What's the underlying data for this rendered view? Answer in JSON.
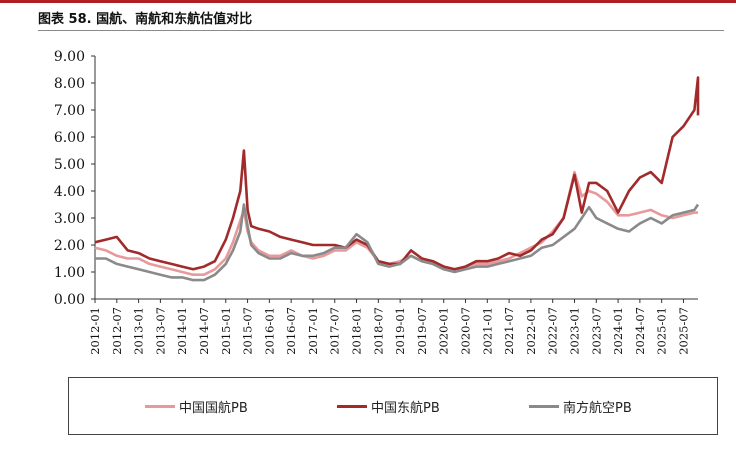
{
  "header": {
    "title": "图表 58. 国航、南航和东航估值对比"
  },
  "chart_data": {
    "type": "line",
    "title": "图表 58. 国航、南航和东航估值对比",
    "xlabel": "",
    "ylabel": "",
    "ylim": [
      0,
      9
    ],
    "y_ticks": [
      "0.00",
      "1.00",
      "2.00",
      "3.00",
      "4.00",
      "5.00",
      "6.00",
      "7.00",
      "8.00",
      "9.00"
    ],
    "x_ticks": [
      "2012-01",
      "2012-07",
      "2013-01",
      "2013-07",
      "2014-01",
      "2014-07",
      "2015-01",
      "2015-07",
      "2016-01",
      "2016-07",
      "2017-01",
      "2017-07",
      "2018-01",
      "2018-07",
      "2019-01",
      "2019-07",
      "2020-01",
      "2020-07",
      "2021-01",
      "2021-07",
      "2022-01",
      "2022-07",
      "2023-01",
      "2023-07",
      "2024-01",
      "2024-07",
      "2025-01",
      "2025-07"
    ],
    "x_range": [
      "2012-01",
      "2025-11"
    ],
    "grid": false,
    "legend_position": "bottom",
    "series": [
      {
        "name": "中国国航PB",
        "color": "#e8999b",
        "points": [
          [
            "2012-01",
            1.9
          ],
          [
            "2012-04",
            1.8
          ],
          [
            "2012-07",
            1.6
          ],
          [
            "2012-10",
            1.5
          ],
          [
            "2013-01",
            1.5
          ],
          [
            "2013-04",
            1.3
          ],
          [
            "2013-07",
            1.2
          ],
          [
            "2013-10",
            1.1
          ],
          [
            "2014-01",
            1.0
          ],
          [
            "2014-04",
            0.9
          ],
          [
            "2014-07",
            0.9
          ],
          [
            "2014-10",
            1.1
          ],
          [
            "2015-01",
            1.5
          ],
          [
            "2015-03",
            2.1
          ],
          [
            "2015-05",
            2.9
          ],
          [
            "2015-06",
            3.3
          ],
          [
            "2015-07",
            2.5
          ],
          [
            "2015-08",
            2.1
          ],
          [
            "2015-10",
            1.8
          ],
          [
            "2016-01",
            1.6
          ],
          [
            "2016-04",
            1.6
          ],
          [
            "2016-07",
            1.8
          ],
          [
            "2016-10",
            1.6
          ],
          [
            "2017-01",
            1.5
          ],
          [
            "2017-04",
            1.6
          ],
          [
            "2017-07",
            1.8
          ],
          [
            "2017-10",
            1.8
          ],
          [
            "2018-01",
            2.1
          ],
          [
            "2018-04",
            1.9
          ],
          [
            "2018-07",
            1.4
          ],
          [
            "2018-10",
            1.3
          ],
          [
            "2019-01",
            1.4
          ],
          [
            "2019-04",
            1.6
          ],
          [
            "2019-07",
            1.4
          ],
          [
            "2019-10",
            1.3
          ],
          [
            "2020-01",
            1.2
          ],
          [
            "2020-04",
            1.1
          ],
          [
            "2020-07",
            1.2
          ],
          [
            "2020-10",
            1.3
          ],
          [
            "2021-01",
            1.3
          ],
          [
            "2021-04",
            1.4
          ],
          [
            "2021-07",
            1.5
          ],
          [
            "2021-10",
            1.7
          ],
          [
            "2022-01",
            1.9
          ],
          [
            "2022-04",
            2.1
          ],
          [
            "2022-07",
            2.5
          ],
          [
            "2022-10",
            3.0
          ],
          [
            "2023-01",
            4.7
          ],
          [
            "2023-03",
            3.8
          ],
          [
            "2023-05",
            4.0
          ],
          [
            "2023-07",
            3.9
          ],
          [
            "2023-10",
            3.6
          ],
          [
            "2024-01",
            3.1
          ],
          [
            "2024-04",
            3.1
          ],
          [
            "2024-07",
            3.2
          ],
          [
            "2024-10",
            3.3
          ],
          [
            "2025-01",
            3.1
          ],
          [
            "2025-04",
            3.0
          ],
          [
            "2025-07",
            3.1
          ],
          [
            "2025-10",
            3.2
          ],
          [
            "2025-11",
            3.2
          ]
        ]
      },
      {
        "name": "中国东航PB",
        "color": "#a12a2b",
        "points": [
          [
            "2012-01",
            2.1
          ],
          [
            "2012-04",
            2.2
          ],
          [
            "2012-07",
            2.3
          ],
          [
            "2012-10",
            1.8
          ],
          [
            "2013-01",
            1.7
          ],
          [
            "2013-04",
            1.5
          ],
          [
            "2013-07",
            1.4
          ],
          [
            "2013-10",
            1.3
          ],
          [
            "2014-01",
            1.2
          ],
          [
            "2014-04",
            1.1
          ],
          [
            "2014-07",
            1.2
          ],
          [
            "2014-10",
            1.4
          ],
          [
            "2015-01",
            2.2
          ],
          [
            "2015-03",
            3.0
          ],
          [
            "2015-05",
            4.0
          ],
          [
            "2015-06",
            5.5
          ],
          [
            "2015-07",
            3.3
          ],
          [
            "2015-08",
            2.7
          ],
          [
            "2015-10",
            2.6
          ],
          [
            "2016-01",
            2.5
          ],
          [
            "2016-04",
            2.3
          ],
          [
            "2016-07",
            2.2
          ],
          [
            "2016-10",
            2.1
          ],
          [
            "2017-01",
            2.0
          ],
          [
            "2017-04",
            2.0
          ],
          [
            "2017-07",
            2.0
          ],
          [
            "2017-10",
            1.9
          ],
          [
            "2018-01",
            2.2
          ],
          [
            "2018-04",
            2.0
          ],
          [
            "2018-07",
            1.4
          ],
          [
            "2018-10",
            1.3
          ],
          [
            "2019-01",
            1.3
          ],
          [
            "2019-04",
            1.8
          ],
          [
            "2019-07",
            1.5
          ],
          [
            "2019-10",
            1.4
          ],
          [
            "2020-01",
            1.2
          ],
          [
            "2020-04",
            1.1
          ],
          [
            "2020-07",
            1.2
          ],
          [
            "2020-10",
            1.4
          ],
          [
            "2021-01",
            1.4
          ],
          [
            "2021-04",
            1.5
          ],
          [
            "2021-07",
            1.7
          ],
          [
            "2021-10",
            1.6
          ],
          [
            "2022-01",
            1.8
          ],
          [
            "2022-04",
            2.2
          ],
          [
            "2022-07",
            2.4
          ],
          [
            "2022-10",
            3.0
          ],
          [
            "2023-01",
            4.6
          ],
          [
            "2023-03",
            3.2
          ],
          [
            "2023-05",
            4.3
          ],
          [
            "2023-07",
            4.3
          ],
          [
            "2023-10",
            4.0
          ],
          [
            "2024-01",
            3.2
          ],
          [
            "2024-04",
            4.0
          ],
          [
            "2024-07",
            4.5
          ],
          [
            "2024-10",
            4.7
          ],
          [
            "2025-01",
            4.3
          ],
          [
            "2025-04",
            6.0
          ],
          [
            "2025-07",
            6.4
          ],
          [
            "2025-10",
            7.0
          ],
          [
            "2025-11",
            8.2
          ],
          [
            "2025-11",
            6.8
          ]
        ]
      },
      {
        "name": "南方航空PB",
        "color": "#8a8a8a",
        "points": [
          [
            "2012-01",
            1.5
          ],
          [
            "2012-04",
            1.5
          ],
          [
            "2012-07",
            1.3
          ],
          [
            "2012-10",
            1.2
          ],
          [
            "2013-01",
            1.1
          ],
          [
            "2013-04",
            1.0
          ],
          [
            "2013-07",
            0.9
          ],
          [
            "2013-10",
            0.8
          ],
          [
            "2014-01",
            0.8
          ],
          [
            "2014-04",
            0.7
          ],
          [
            "2014-07",
            0.7
          ],
          [
            "2014-10",
            0.9
          ],
          [
            "2015-01",
            1.3
          ],
          [
            "2015-03",
            1.8
          ],
          [
            "2015-05",
            2.5
          ],
          [
            "2015-06",
            3.5
          ],
          [
            "2015-07",
            2.7
          ],
          [
            "2015-08",
            2.0
          ],
          [
            "2015-10",
            1.7
          ],
          [
            "2016-01",
            1.5
          ],
          [
            "2016-04",
            1.5
          ],
          [
            "2016-07",
            1.7
          ],
          [
            "2016-10",
            1.6
          ],
          [
            "2017-01",
            1.6
          ],
          [
            "2017-04",
            1.7
          ],
          [
            "2017-07",
            1.9
          ],
          [
            "2017-10",
            1.9
          ],
          [
            "2018-01",
            2.4
          ],
          [
            "2018-04",
            2.1
          ],
          [
            "2018-07",
            1.3
          ],
          [
            "2018-10",
            1.2
          ],
          [
            "2019-01",
            1.3
          ],
          [
            "2019-04",
            1.6
          ],
          [
            "2019-07",
            1.4
          ],
          [
            "2019-10",
            1.3
          ],
          [
            "2020-01",
            1.1
          ],
          [
            "2020-04",
            1.0
          ],
          [
            "2020-07",
            1.1
          ],
          [
            "2020-10",
            1.2
          ],
          [
            "2021-01",
            1.2
          ],
          [
            "2021-04",
            1.3
          ],
          [
            "2021-07",
            1.4
          ],
          [
            "2021-10",
            1.5
          ],
          [
            "2022-01",
            1.6
          ],
          [
            "2022-04",
            1.9
          ],
          [
            "2022-07",
            2.0
          ],
          [
            "2022-10",
            2.3
          ],
          [
            "2023-01",
            2.6
          ],
          [
            "2023-03",
            3.0
          ],
          [
            "2023-05",
            3.4
          ],
          [
            "2023-07",
            3.0
          ],
          [
            "2023-10",
            2.8
          ],
          [
            "2024-01",
            2.6
          ],
          [
            "2024-04",
            2.5
          ],
          [
            "2024-07",
            2.8
          ],
          [
            "2024-10",
            3.0
          ],
          [
            "2025-01",
            2.8
          ],
          [
            "2025-04",
            3.1
          ],
          [
            "2025-07",
            3.2
          ],
          [
            "2025-10",
            3.3
          ],
          [
            "2025-11",
            3.5
          ]
        ]
      }
    ]
  }
}
